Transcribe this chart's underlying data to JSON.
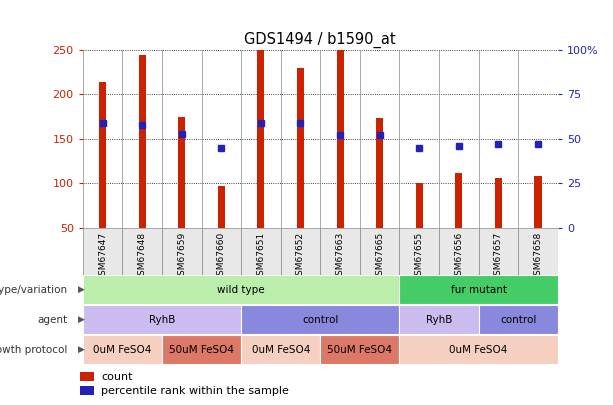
{
  "title": "GDS1494 / b1590_at",
  "samples": [
    "GSM67647",
    "GSM67648",
    "GSM67659",
    "GSM67660",
    "GSM67651",
    "GSM67652",
    "GSM67663",
    "GSM67665",
    "GSM67655",
    "GSM67656",
    "GSM67657",
    "GSM67658"
  ],
  "counts": [
    214,
    244,
    175,
    97,
    250,
    230,
    250,
    174,
    100,
    112,
    106,
    108
  ],
  "percentiles": [
    59,
    58,
    53,
    45,
    59,
    59,
    52,
    52,
    45,
    46,
    47,
    47
  ],
  "ylim_left": [
    50,
    250
  ],
  "ylim_right": [
    0,
    100
  ],
  "yticks_left": [
    50,
    100,
    150,
    200,
    250
  ],
  "yticks_right": [
    0,
    25,
    50,
    75,
    100
  ],
  "bar_color": "#cc2200",
  "dot_color": "#2222bb",
  "bar_bottom": 50,
  "genotype_variation_list": [
    {
      "label": "wild type",
      "span": [
        0,
        8
      ],
      "color": "#bbeeaa"
    },
    {
      "label": "fur mutant",
      "span": [
        8,
        12
      ],
      "color": "#44cc66"
    }
  ],
  "agent_list": [
    {
      "label": "RyhB",
      "span": [
        0,
        4
      ],
      "color": "#ccbbee"
    },
    {
      "label": "control",
      "span": [
        4,
        8
      ],
      "color": "#8888dd"
    },
    {
      "label": "RyhB",
      "span": [
        8,
        10
      ],
      "color": "#ccbbee"
    },
    {
      "label": "control",
      "span": [
        10,
        12
      ],
      "color": "#8888dd"
    }
  ],
  "growth_protocol_list": [
    {
      "label": "0uM FeSO4",
      "span": [
        0,
        2
      ],
      "color": "#f5cfc0"
    },
    {
      "label": "50uM FeSO4",
      "span": [
        2,
        4
      ],
      "color": "#dd7766"
    },
    {
      "label": "0uM FeSO4",
      "span": [
        4,
        6
      ],
      "color": "#f5cfc0"
    },
    {
      "label": "50uM FeSO4",
      "span": [
        6,
        8
      ],
      "color": "#dd7766"
    },
    {
      "label": "0uM FeSO4",
      "span": [
        8,
        12
      ],
      "color": "#f5cfc0"
    }
  ],
  "row_labels": [
    "genotype/variation",
    "agent",
    "growth protocol"
  ],
  "title_color": "#000000",
  "right_axis_color": "#2222bb",
  "left_axis_color": "#cc2200",
  "grid_color": "#888888",
  "separator_color": "#888888"
}
